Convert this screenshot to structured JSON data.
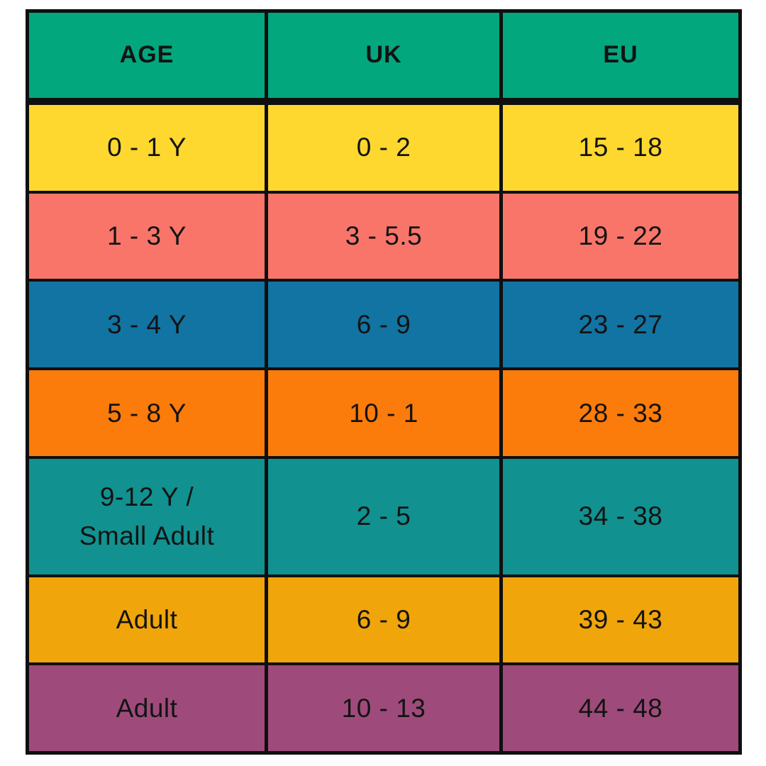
{
  "chart_data": {
    "type": "table",
    "columns": [
      "AGE",
      "UK",
      "EU"
    ],
    "rows": [
      {
        "age": "0 - 1 Y",
        "uk": "0 - 2",
        "eu": "15 - 18"
      },
      {
        "age": "1 - 3 Y",
        "uk": "3 - 5.5",
        "eu": "19 - 22"
      },
      {
        "age": "3 - 4 Y",
        "uk": "6 - 9",
        "eu": "23 - 27"
      },
      {
        "age": "5 - 8 Y",
        "uk": "10 - 1",
        "eu": "28 - 33"
      },
      {
        "age": "9-12 Y /\nSmall Adult",
        "uk": "2 - 5",
        "eu": "34 - 38"
      },
      {
        "age": "Adult",
        "uk": "6 - 9",
        "eu": "39 - 43"
      },
      {
        "age": "Adult",
        "uk": "10 - 13",
        "eu": "44 - 48"
      }
    ],
    "legend": "none",
    "grid": "black cell borders"
  },
  "style": {
    "page_bg": "#ffffff",
    "border_color": "#0f0f0f",
    "text_color": "#131313",
    "header_bg": "#02a77e",
    "row_colors": [
      "#fed72f",
      "#f97569",
      "#1174a3",
      "#fb7b0b",
      "#119190",
      "#f0a50a",
      "#9e4b7b"
    ]
  }
}
